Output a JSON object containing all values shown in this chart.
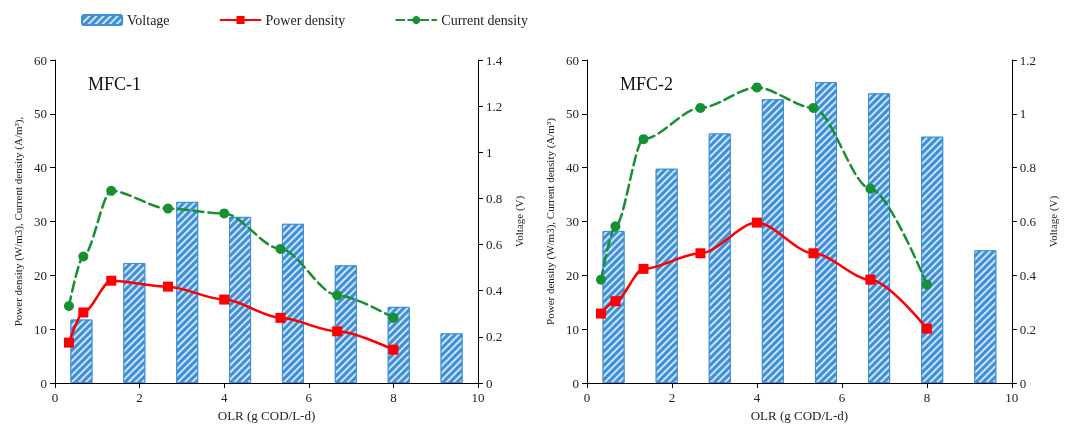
{
  "chart_data": [
    {
      "type": "line",
      "title": "MFC-1",
      "xlabel": "OLR (g COD/L-d)",
      "ylabel": "Power density (W/m3), Current density (A/m³),",
      "y2label": "Voltage (V)",
      "xlim": [
        0,
        10
      ],
      "xticks": [
        0,
        2,
        4,
        6,
        8,
        10
      ],
      "ylim": [
        0,
        60
      ],
      "yticks": [
        0,
        10,
        20,
        30,
        40,
        50,
        60
      ],
      "y2lim": [
        0,
        1.4
      ],
      "y2ticks": [
        0,
        0.2,
        0.4,
        0.6,
        0.8,
        1,
        1.2,
        1.4
      ],
      "grid": false,
      "legend": "top",
      "series": [
        {
          "name": "Voltage",
          "type": "bar",
          "axis": "y2",
          "color": "#3d8fd9",
          "x": [
            0.625,
            1.875,
            3.125,
            4.375,
            5.625,
            6.875,
            8.125,
            9.375
          ],
          "values": [
            0.275,
            0.52,
            0.785,
            0.72,
            0.69,
            0.51,
            0.33,
            0.215
          ]
        },
        {
          "name": "Power density",
          "color": "#ff0000",
          "marker": "square",
          "line_style": "solid",
          "x": [
            0.33,
            0.67,
            1.33,
            2.67,
            4,
            5.33,
            6.67,
            8
          ],
          "values": [
            7.5,
            13.1,
            19.0,
            17.9,
            15.5,
            12.1,
            9.6,
            6.2
          ]
        },
        {
          "name": "Current density",
          "color": "#169030",
          "marker": "circle",
          "line_style": "dashed",
          "x": [
            0.33,
            0.67,
            1.33,
            2.67,
            4,
            5.33,
            6.67,
            8
          ],
          "values": [
            14.3,
            23.5,
            35.7,
            32.4,
            31.5,
            24.9,
            16.3,
            12.1
          ]
        }
      ]
    },
    {
      "type": "line",
      "title": "MFC-2",
      "xlabel": "OLR (g COD/L-d)",
      "ylabel": "Power density (W/m3), Current density (A/m³)",
      "y2label": "Voltage (V)",
      "xlim": [
        0,
        10
      ],
      "xticks": [
        0,
        2,
        4,
        6,
        8,
        10
      ],
      "ylim": [
        0,
        60
      ],
      "yticks": [
        0,
        10,
        20,
        30,
        40,
        50,
        60
      ],
      "y2lim": [
        0,
        1.2
      ],
      "y2ticks": [
        0,
        0.2,
        0.4,
        0.6,
        0.8,
        1,
        1.2
      ],
      "grid": false,
      "legend": false,
      "series": [
        {
          "type": "bar",
          "axis": "y2",
          "color": "#3d8fd9",
          "x": [
            0.625,
            1.875,
            3.125,
            4.375,
            5.625,
            6.875,
            8.125,
            9.375
          ],
          "values": [
            0.565,
            0.796,
            0.927,
            1.054,
            1.118,
            1.076,
            0.915,
            0.493
          ]
        },
        {
          "color": "#ff0000",
          "marker": "square",
          "line_style": "solid",
          "x": [
            0.33,
            0.67,
            1.33,
            2.67,
            4,
            5.33,
            6.67,
            8
          ],
          "values": [
            12.9,
            15.2,
            21.2,
            24.1,
            29.8,
            24.1,
            19.2,
            10.1
          ]
        },
        {
          "color": "#169030",
          "marker": "circle",
          "line_style": "dashed",
          "x": [
            0.33,
            0.67,
            1.33,
            2.67,
            4,
            5.33,
            6.67,
            8
          ],
          "values": [
            19.2,
            29.1,
            45.3,
            51.1,
            54.9,
            51.1,
            36.1,
            18.3
          ]
        }
      ]
    }
  ]
}
